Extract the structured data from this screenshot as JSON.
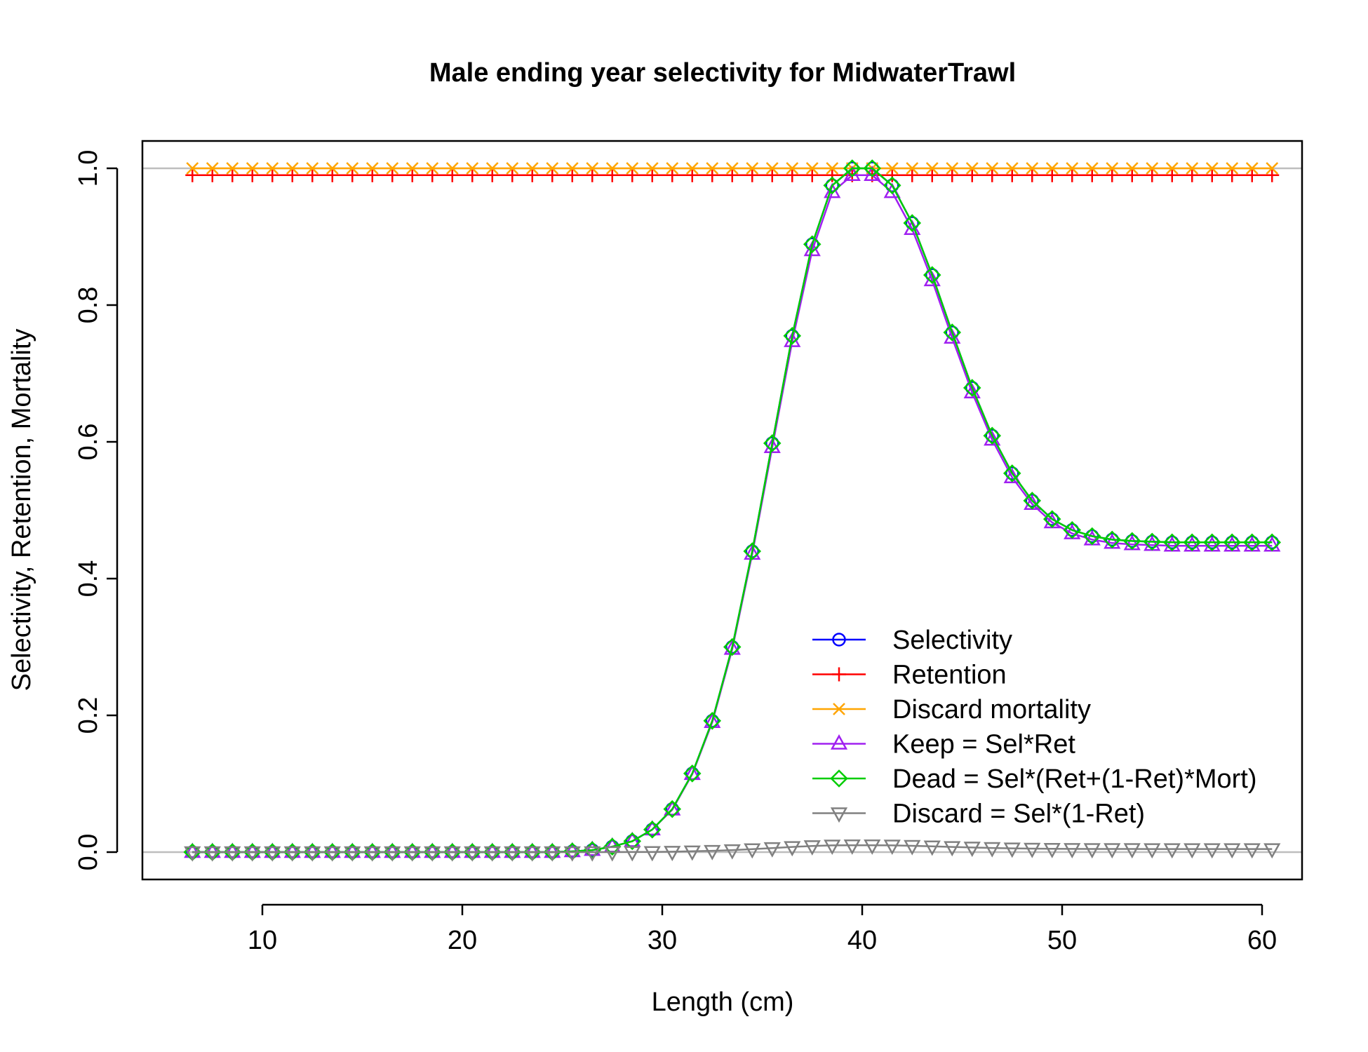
{
  "chart_data": {
    "type": "line",
    "title": "Male ending year selectivity for MidwaterTrawl",
    "xlabel": "Length (cm)",
    "ylabel": "Selectivity, Retention, Mortality",
    "xlim": [
      4,
      62
    ],
    "ylim": [
      -0.04,
      1.04
    ],
    "xticks": [
      "10",
      "20",
      "30",
      "40",
      "50",
      "60"
    ],
    "yticks": [
      "0.0",
      "0.2",
      "0.4",
      "0.6",
      "0.8",
      "1.0"
    ],
    "reference_lines_y": [
      0,
      1
    ],
    "legend_position": "bottom-right",
    "x": [
      6.5,
      7.5,
      8.5,
      9.5,
      10.5,
      11.5,
      12.5,
      13.5,
      14.5,
      15.5,
      16.5,
      17.5,
      18.5,
      19.5,
      20.5,
      21.5,
      22.5,
      23.5,
      24.5,
      25.5,
      26.5,
      27.5,
      28.5,
      29.5,
      30.5,
      31.5,
      32.5,
      33.5,
      34.5,
      35.5,
      36.5,
      37.5,
      38.5,
      39.5,
      40.5,
      41.5,
      42.5,
      43.5,
      44.5,
      45.5,
      46.5,
      47.5,
      48.5,
      49.5,
      50.5,
      51.5,
      52.5,
      53.5,
      54.5,
      55.5,
      56.5,
      57.5,
      58.5,
      59.5,
      60.5
    ],
    "series": [
      {
        "name": "Selectivity",
        "color": "#0000ff",
        "marker": "circle",
        "values": [
          0,
          0,
          0,
          0,
          0,
          0,
          0,
          0,
          0,
          0,
          0,
          0,
          0,
          0,
          0,
          0,
          0,
          0,
          0,
          0.001,
          0.003,
          0.008,
          0.016,
          0.033,
          0.063,
          0.115,
          0.192,
          0.3,
          0.44,
          0.598,
          0.755,
          0.889,
          0.975,
          1.0,
          1.0,
          0.975,
          0.92,
          0.844,
          0.76,
          0.679,
          0.609,
          0.554,
          0.514,
          0.487,
          0.471,
          0.462,
          0.457,
          0.455,
          0.454,
          0.453,
          0.453,
          0.453,
          0.453,
          0.453,
          0.453
        ]
      },
      {
        "name": "Retention",
        "color": "#ff0000",
        "marker": "plus",
        "values": [
          0.99,
          0.99,
          0.99,
          0.99,
          0.99,
          0.99,
          0.99,
          0.99,
          0.99,
          0.99,
          0.99,
          0.99,
          0.99,
          0.99,
          0.99,
          0.99,
          0.99,
          0.99,
          0.99,
          0.99,
          0.99,
          0.99,
          0.99,
          0.99,
          0.99,
          0.99,
          0.99,
          0.99,
          0.99,
          0.99,
          0.99,
          0.99,
          0.99,
          0.99,
          0.99,
          0.99,
          0.99,
          0.99,
          0.99,
          0.99,
          0.99,
          0.99,
          0.99,
          0.99,
          0.99,
          0.99,
          0.99,
          0.99,
          0.99,
          0.99,
          0.99,
          0.99,
          0.99,
          0.99,
          0.99
        ]
      },
      {
        "name": "Discard mortality",
        "color": "#ffa500",
        "marker": "cross",
        "values": [
          1,
          1,
          1,
          1,
          1,
          1,
          1,
          1,
          1,
          1,
          1,
          1,
          1,
          1,
          1,
          1,
          1,
          1,
          1,
          1,
          1,
          1,
          1,
          1,
          1,
          1,
          1,
          1,
          1,
          1,
          1,
          1,
          1,
          1,
          1,
          1,
          1,
          1,
          1,
          1,
          1,
          1,
          1,
          1,
          1,
          1,
          1,
          1,
          1,
          1,
          1,
          1,
          1,
          1,
          1
        ]
      },
      {
        "name": "Keep = Sel*Ret",
        "color": "#a020f0",
        "marker": "triangle-up",
        "values": [
          0,
          0,
          0,
          0,
          0,
          0,
          0,
          0,
          0,
          0,
          0,
          0,
          0,
          0,
          0,
          0,
          0,
          0,
          0,
          0.001,
          0.003,
          0.008,
          0.016,
          0.033,
          0.062,
          0.114,
          0.19,
          0.297,
          0.436,
          0.592,
          0.747,
          0.88,
          0.965,
          0.99,
          0.99,
          0.965,
          0.911,
          0.836,
          0.752,
          0.672,
          0.603,
          0.548,
          0.509,
          0.482,
          0.466,
          0.457,
          0.452,
          0.45,
          0.449,
          0.448,
          0.448,
          0.448,
          0.448,
          0.448,
          0.448
        ]
      },
      {
        "name": "Dead = Sel*(Ret+(1-Ret)*Mort)",
        "color": "#00cd00",
        "marker": "diamond",
        "values": [
          0,
          0,
          0,
          0,
          0,
          0,
          0,
          0,
          0,
          0,
          0,
          0,
          0,
          0,
          0,
          0,
          0,
          0,
          0,
          0.001,
          0.003,
          0.008,
          0.016,
          0.033,
          0.063,
          0.115,
          0.192,
          0.3,
          0.44,
          0.598,
          0.755,
          0.889,
          0.975,
          1.0,
          1.0,
          0.975,
          0.92,
          0.844,
          0.76,
          0.679,
          0.609,
          0.554,
          0.514,
          0.487,
          0.471,
          0.462,
          0.457,
          0.455,
          0.454,
          0.453,
          0.453,
          0.453,
          0.453,
          0.453,
          0.453
        ]
      },
      {
        "name": "Discard = Sel*(1-Ret)",
        "color": "#808080",
        "marker": "triangle-down",
        "values": [
          0,
          0,
          0,
          0,
          0,
          0,
          0,
          0,
          0,
          0,
          0,
          0,
          0,
          0,
          0,
          0,
          0,
          0,
          0,
          0,
          0,
          0.0001,
          0.0002,
          0.0003,
          0.0006,
          0.0012,
          0.0019,
          0.003,
          0.0044,
          0.006,
          0.0076,
          0.0089,
          0.0098,
          0.01,
          0.01,
          0.0098,
          0.0092,
          0.0084,
          0.0076,
          0.0068,
          0.0061,
          0.0055,
          0.0051,
          0.0049,
          0.0047,
          0.0046,
          0.0046,
          0.0046,
          0.0045,
          0.0045,
          0.0045,
          0.0045,
          0.0045,
          0.0045,
          0.0045
        ]
      }
    ]
  }
}
